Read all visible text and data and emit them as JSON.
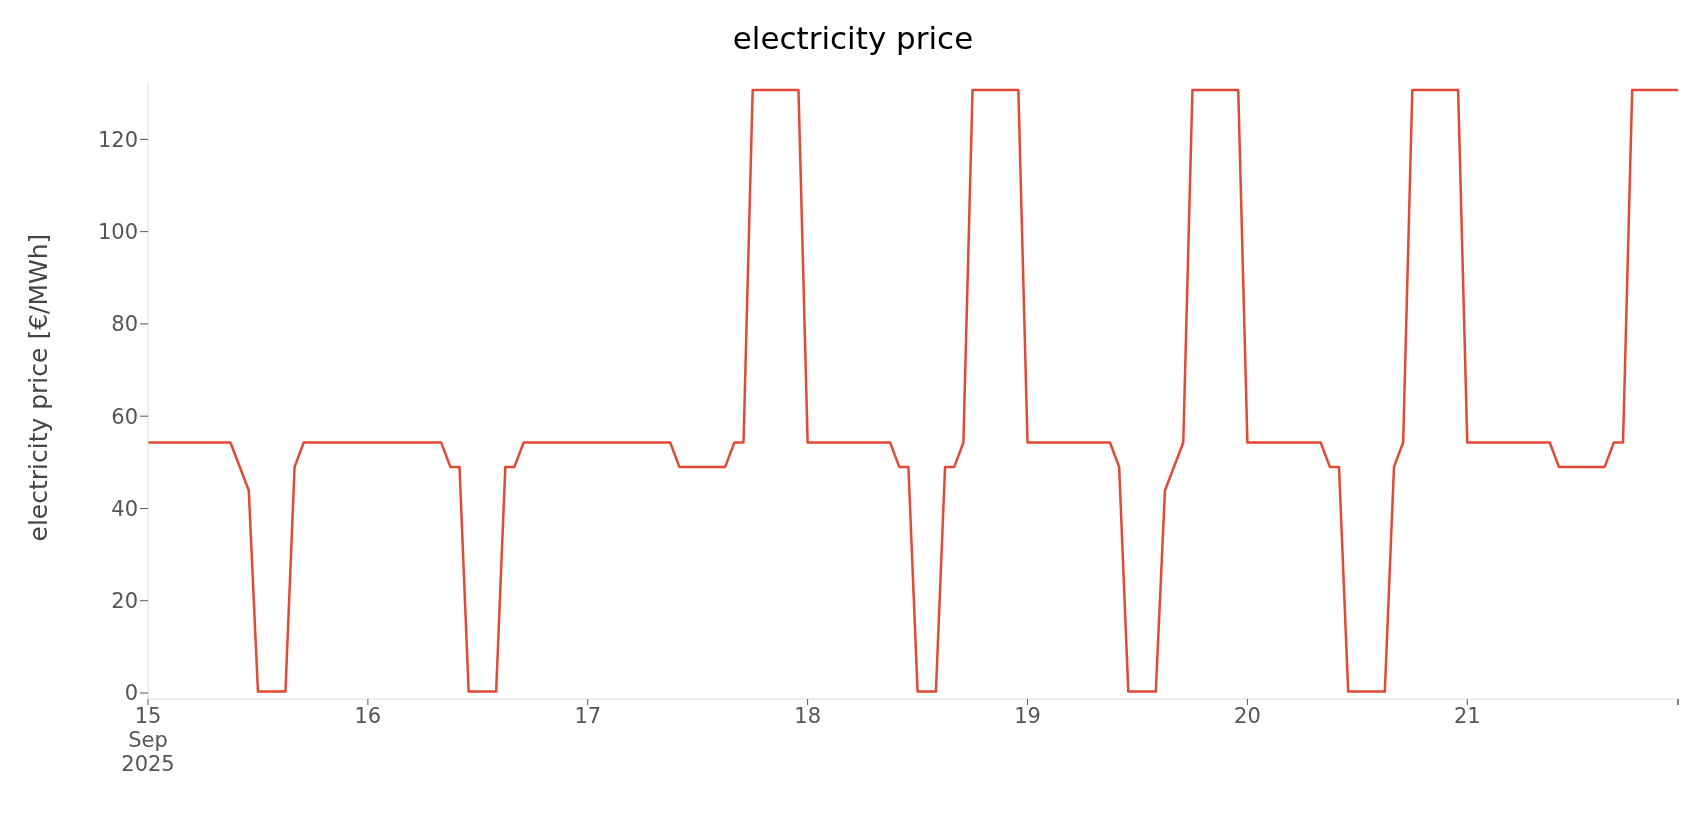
{
  "chart_data": {
    "type": "line",
    "title": "electricity price",
    "ylabel": "electricity price [€/MWh]",
    "x": [
      "2025-09-15T00:00",
      "2025-09-15T01:00",
      "2025-09-15T02:00",
      "2025-09-15T03:00",
      "2025-09-15T04:00",
      "2025-09-15T05:00",
      "2025-09-15T06:00",
      "2025-09-15T07:00",
      "2025-09-15T08:00",
      "2025-09-15T09:00",
      "2025-09-15T10:00",
      "2025-09-15T11:00",
      "2025-09-15T12:00",
      "2025-09-15T13:00",
      "2025-09-15T14:00",
      "2025-09-15T15:00",
      "2025-09-15T16:00",
      "2025-09-15T17:00",
      "2025-09-15T18:00",
      "2025-09-15T19:00",
      "2025-09-15T20:00",
      "2025-09-15T21:00",
      "2025-09-15T22:00",
      "2025-09-15T23:00",
      "2025-09-16T00:00",
      "2025-09-16T01:00",
      "2025-09-16T02:00",
      "2025-09-16T03:00",
      "2025-09-16T04:00",
      "2025-09-16T05:00",
      "2025-09-16T06:00",
      "2025-09-16T07:00",
      "2025-09-16T08:00",
      "2025-09-16T09:00",
      "2025-09-16T10:00",
      "2025-09-16T11:00",
      "2025-09-16T12:00",
      "2025-09-16T13:00",
      "2025-09-16T14:00",
      "2025-09-16T15:00",
      "2025-09-16T16:00",
      "2025-09-16T17:00",
      "2025-09-16T18:00",
      "2025-09-16T19:00",
      "2025-09-16T20:00",
      "2025-09-16T21:00",
      "2025-09-16T22:00",
      "2025-09-16T23:00",
      "2025-09-17T00:00",
      "2025-09-17T01:00",
      "2025-09-17T02:00",
      "2025-09-17T03:00",
      "2025-09-17T04:00",
      "2025-09-17T05:00",
      "2025-09-17T06:00",
      "2025-09-17T07:00",
      "2025-09-17T08:00",
      "2025-09-17T09:00",
      "2025-09-17T10:00",
      "2025-09-17T11:00",
      "2025-09-17T12:00",
      "2025-09-17T13:00",
      "2025-09-17T14:00",
      "2025-09-17T15:00",
      "2025-09-17T16:00",
      "2025-09-17T17:00",
      "2025-09-17T18:00",
      "2025-09-17T19:00",
      "2025-09-17T20:00",
      "2025-09-17T21:00",
      "2025-09-17T22:00",
      "2025-09-17T23:00",
      "2025-09-18T00:00",
      "2025-09-18T01:00",
      "2025-09-18T02:00",
      "2025-09-18T03:00",
      "2025-09-18T04:00",
      "2025-09-18T05:00",
      "2025-09-18T06:00",
      "2025-09-18T07:00",
      "2025-09-18T08:00",
      "2025-09-18T09:00",
      "2025-09-18T10:00",
      "2025-09-18T11:00",
      "2025-09-18T12:00",
      "2025-09-18T13:00",
      "2025-09-18T14:00",
      "2025-09-18T15:00",
      "2025-09-18T16:00",
      "2025-09-18T17:00",
      "2025-09-18T18:00",
      "2025-09-18T19:00",
      "2025-09-18T20:00",
      "2025-09-18T21:00",
      "2025-09-18T22:00",
      "2025-09-18T23:00",
      "2025-09-19T00:00",
      "2025-09-19T01:00",
      "2025-09-19T02:00",
      "2025-09-19T03:00",
      "2025-09-19T04:00",
      "2025-09-19T05:00",
      "2025-09-19T06:00",
      "2025-09-19T07:00",
      "2025-09-19T08:00",
      "2025-09-19T09:00",
      "2025-09-19T10:00",
      "2025-09-19T11:00",
      "2025-09-19T12:00",
      "2025-09-19T13:00",
      "2025-09-19T14:00",
      "2025-09-19T15:00",
      "2025-09-19T16:00",
      "2025-09-19T17:00",
      "2025-09-19T18:00",
      "2025-09-19T19:00",
      "2025-09-19T20:00",
      "2025-09-19T21:00",
      "2025-09-19T22:00",
      "2025-09-19T23:00",
      "2025-09-20T00:00",
      "2025-09-20T01:00",
      "2025-09-20T02:00",
      "2025-09-20T03:00",
      "2025-09-20T04:00",
      "2025-09-20T05:00",
      "2025-09-20T06:00",
      "2025-09-20T07:00",
      "2025-09-20T08:00",
      "2025-09-20T09:00",
      "2025-09-20T10:00",
      "2025-09-20T11:00",
      "2025-09-20T12:00",
      "2025-09-20T13:00",
      "2025-09-20T14:00",
      "2025-09-20T15:00",
      "2025-09-20T16:00",
      "2025-09-20T17:00",
      "2025-09-20T18:00",
      "2025-09-20T19:00",
      "2025-09-20T20:00",
      "2025-09-20T21:00",
      "2025-09-20T22:00",
      "2025-09-20T23:00",
      "2025-09-21T00:00",
      "2025-09-21T01:00",
      "2025-09-21T02:00",
      "2025-09-21T03:00",
      "2025-09-21T04:00",
      "2025-09-21T05:00",
      "2025-09-21T06:00",
      "2025-09-21T07:00",
      "2025-09-21T08:00",
      "2025-09-21T09:00",
      "2025-09-21T10:00",
      "2025-09-21T11:00",
      "2025-09-21T12:00",
      "2025-09-21T13:00",
      "2025-09-21T14:00",
      "2025-09-21T15:00",
      "2025-09-21T16:00",
      "2025-09-21T17:00",
      "2025-09-21T18:00",
      "2025-09-21T19:00",
      "2025-09-21T20:00",
      "2025-09-21T21:00",
      "2025-09-21T22:00",
      "2025-09-21T23:00"
    ],
    "series": [
      {
        "color": "#e24a33",
        "values": [
          54.3,
          54.3,
          54.3,
          54.3,
          54.3,
          54.3,
          54.3,
          54.3,
          54.3,
          54.3,
          49.1,
          43.9,
          0.3,
          0.3,
          0.3,
          0.3,
          49,
          54.3,
          54.3,
          54.3,
          54.3,
          54.3,
          54.3,
          54.3,
          54.3,
          54.3,
          54.3,
          54.3,
          54.3,
          54.3,
          54.3,
          54.3,
          54.3,
          49,
          49,
          0.3,
          0.3,
          0.3,
          0.3,
          49,
          49,
          54.3,
          54.3,
          54.3,
          54.3,
          54.3,
          54.3,
          54.3,
          54.3,
          54.3,
          54.3,
          54.3,
          54.3,
          54.3,
          54.3,
          54.3,
          54.3,
          54.3,
          49,
          49,
          49,
          49,
          49,
          49,
          54.3,
          54.3,
          130.7,
          130.7,
          130.7,
          130.7,
          130.7,
          130.7,
          54.3,
          54.3,
          54.3,
          54.3,
          54.3,
          54.3,
          54.3,
          54.3,
          54.3,
          54.3,
          49,
          49,
          0.3,
          0.3,
          0.3,
          49,
          49,
          54.3,
          130.7,
          130.7,
          130.7,
          130.7,
          130.7,
          130.7,
          54.3,
          54.3,
          54.3,
          54.3,
          54.3,
          54.3,
          54.3,
          54.3,
          54.3,
          54.3,
          49,
          0.3,
          0.3,
          0.3,
          0.3,
          43.9,
          49.1,
          54.3,
          130.7,
          130.7,
          130.7,
          130.7,
          130.7,
          130.7,
          54.3,
          54.3,
          54.3,
          54.3,
          54.3,
          54.3,
          54.3,
          54.3,
          54.3,
          49,
          49,
          0.3,
          0.3,
          0.3,
          0.3,
          0.3,
          49,
          54.3,
          130.7,
          130.7,
          130.7,
          130.7,
          130.7,
          130.7,
          54.3,
          54.3,
          54.3,
          54.3,
          54.3,
          54.3,
          54.3,
          54.3,
          54.3,
          54.3,
          49,
          49,
          49,
          49,
          49,
          49,
          54.3,
          54.3,
          130.7,
          130.7,
          130.7,
          130.7,
          130.7,
          130.7
        ]
      }
    ],
    "xticks": [
      {
        "value": "2025-09-15",
        "label": "15\nSep\n2025"
      },
      {
        "value": "2025-09-16",
        "label": "16"
      },
      {
        "value": "2025-09-17",
        "label": "17"
      },
      {
        "value": "2025-09-18",
        "label": "18"
      },
      {
        "value": "2025-09-19",
        "label": "19"
      },
      {
        "value": "2025-09-20",
        "label": "20"
      },
      {
        "value": "2025-09-21",
        "label": "21"
      },
      {
        "value": "2025-09-21T23:00",
        "label": null
      }
    ],
    "xlim": [
      "2025-09-15T00:00",
      "2025-09-21T23:00"
    ],
    "ylim": [
      -1.3,
      132
    ],
    "yticks": [
      0,
      20,
      40,
      60,
      80,
      100,
      120
    ],
    "marker": "none",
    "line_style": "solid"
  }
}
